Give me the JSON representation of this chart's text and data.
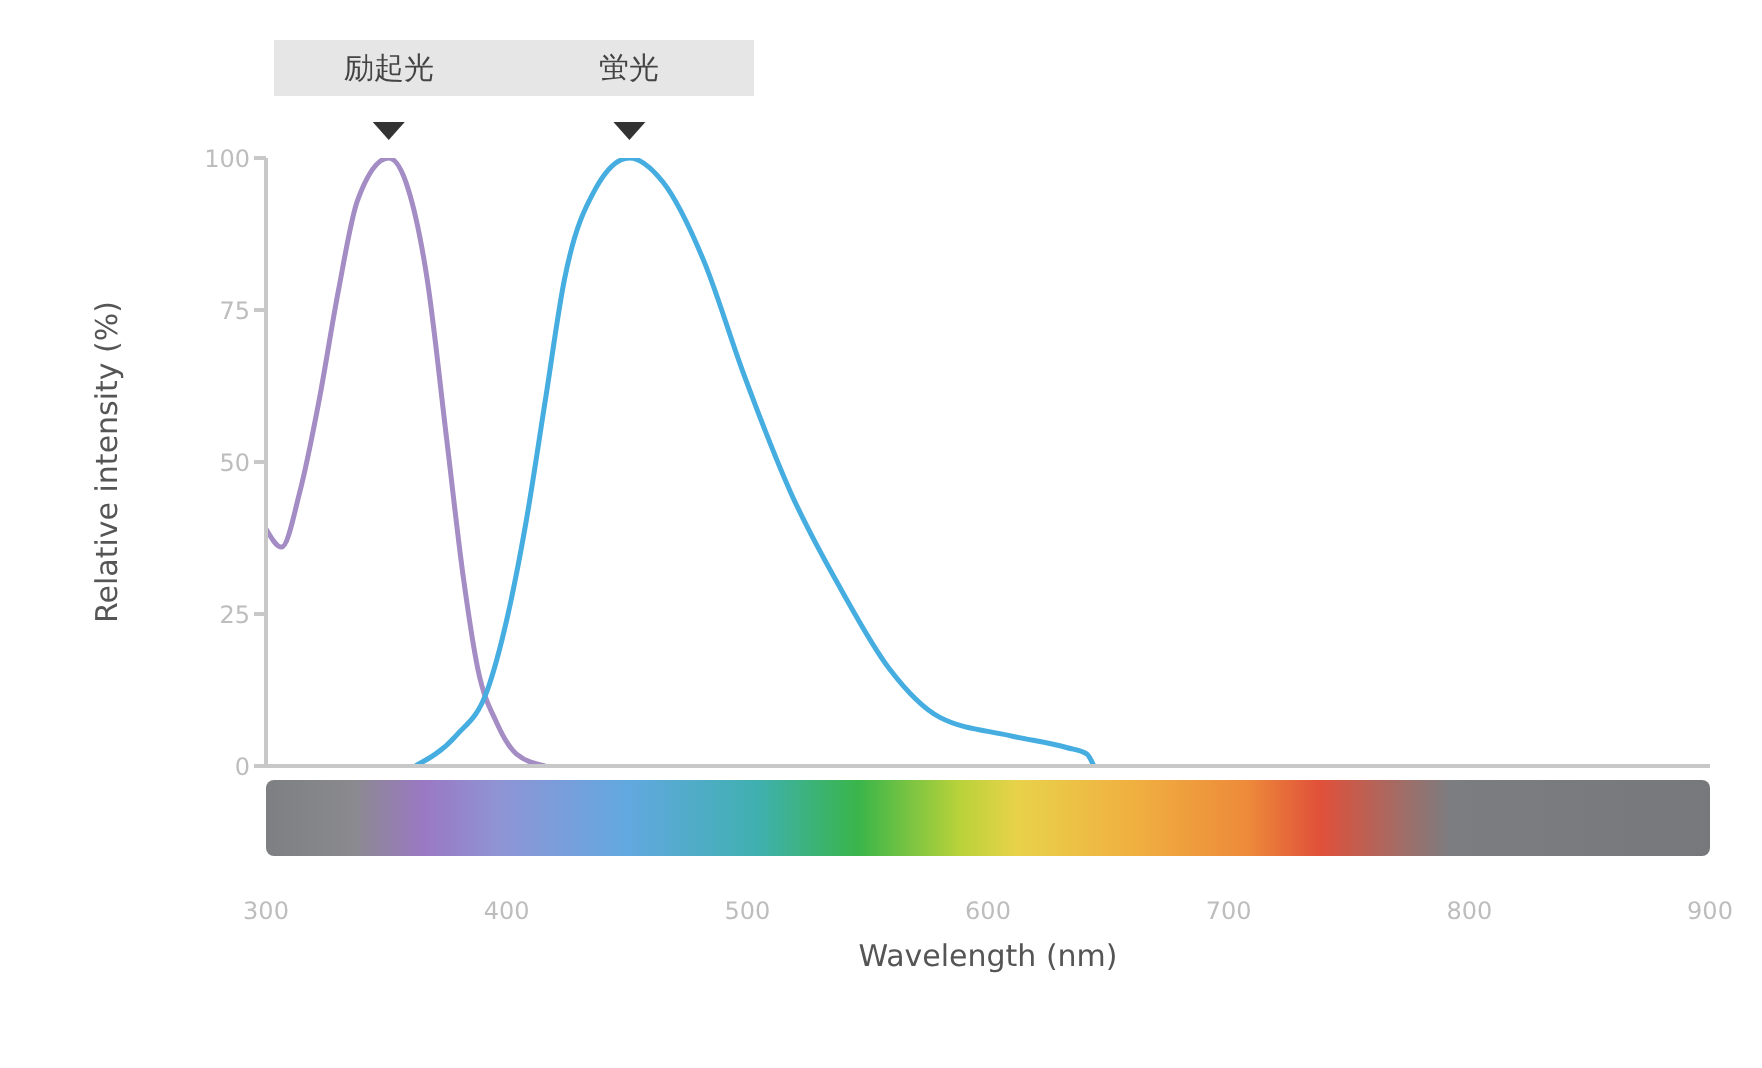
{
  "chart_data": {
    "type": "line",
    "xlabel": "Wavelength (nm)",
    "ylabel": "Relative intensity (%)",
    "xlim": [
      300,
      900
    ],
    "xticks": [
      300,
      400,
      500,
      600,
      700,
      800,
      900
    ],
    "ylim": [
      0,
      100
    ],
    "yticks": [
      0,
      25,
      50,
      75,
      100
    ],
    "marker": "none",
    "line_style": "solid",
    "series": [
      {
        "color": "#a48cc4",
        "x": [
          300,
          306.5,
          314,
          322,
          330,
          338,
          351,
          359,
          367,
          375,
          382,
          388,
          396,
          404,
          416
        ],
        "values": [
          39,
          36,
          45,
          60,
          78,
          93,
          100,
          95,
          80,
          54,
          31,
          16,
          7,
          2,
          0
        ]
      },
      {
        "color": "#45ade0",
        "x": [
          362,
          379,
          392,
          400,
          408,
          416,
          424,
          437,
          451,
          465,
          482,
          498,
          518,
          539,
          559,
          580,
          609,
          633,
          641,
          644
        ],
        "values": [
          0,
          5,
          12.5,
          24,
          40,
          60,
          80,
          95,
          100,
          96,
          83,
          65,
          45,
          29,
          16,
          8,
          5,
          3,
          2,
          0
        ]
      }
    ],
    "annotations": [
      {
        "text": "励起光",
        "x": 351,
        "y": 100
      },
      {
        "text": "蛍光",
        "x": 451,
        "y": 100
      }
    ]
  }
}
